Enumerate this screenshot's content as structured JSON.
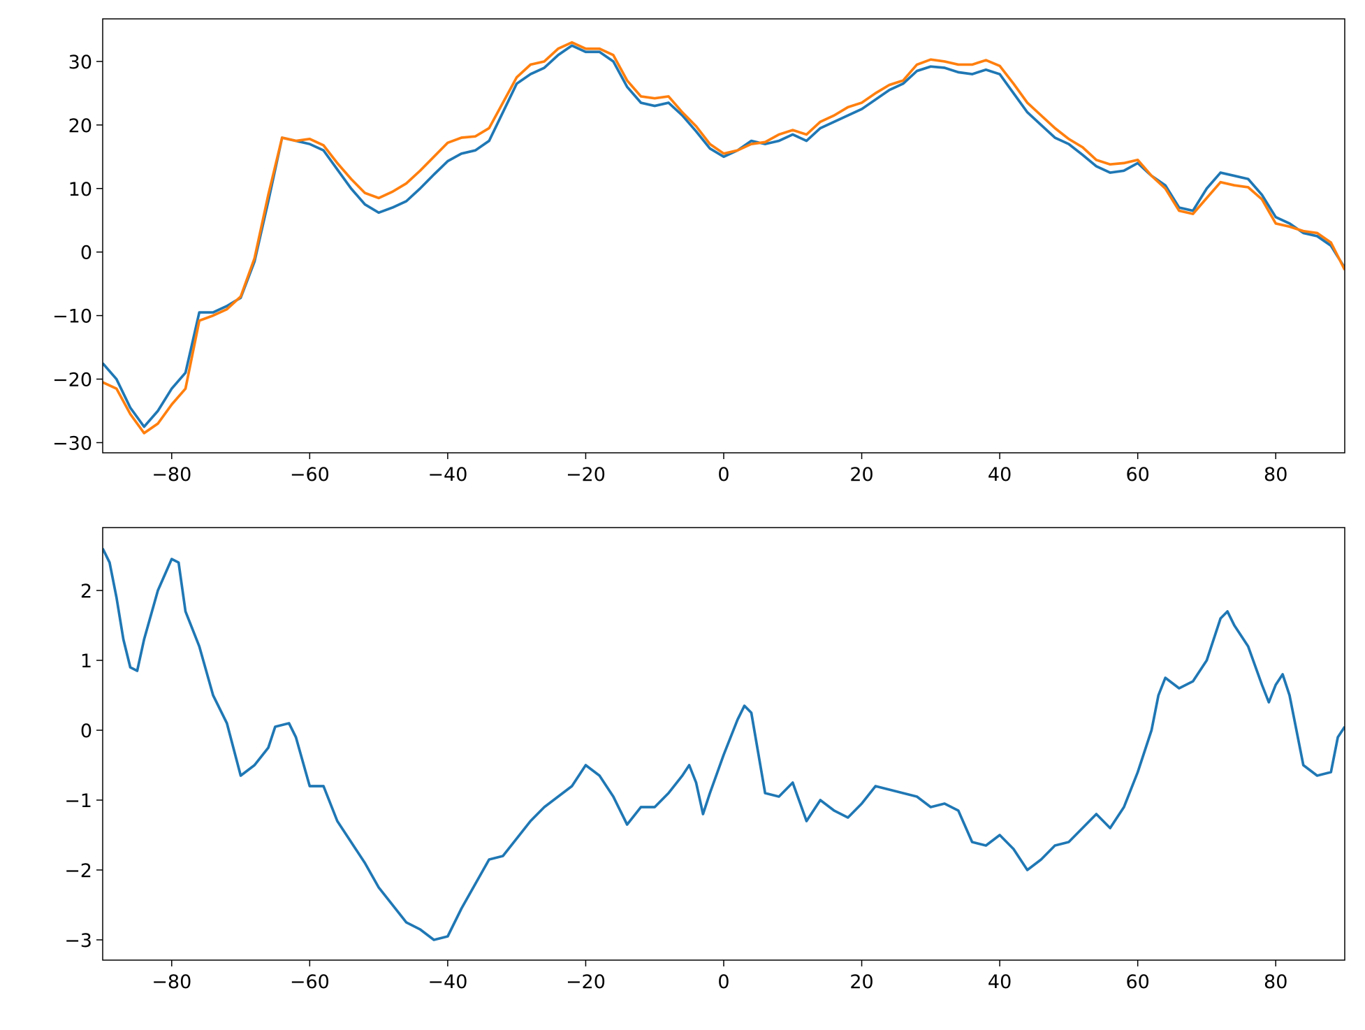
{
  "chart_data": [
    {
      "type": "line",
      "x": [
        -90,
        -88,
        -86,
        -84,
        -82,
        -80,
        -78,
        -76,
        -74,
        -72,
        -70,
        -68,
        -66,
        -64,
        -62,
        -60,
        -58,
        -56,
        -54,
        -52,
        -50,
        -48,
        -46,
        -44,
        -42,
        -40,
        -38,
        -36,
        -34,
        -32,
        -30,
        -28,
        -26,
        -24,
        -22,
        -20,
        -18,
        -16,
        -14,
        -12,
        -10,
        -8,
        -6,
        -4,
        -2,
        0,
        2,
        4,
        6,
        8,
        10,
        12,
        14,
        16,
        18,
        20,
        22,
        24,
        26,
        28,
        30,
        32,
        34,
        36,
        38,
        40,
        42,
        44,
        46,
        48,
        50,
        52,
        54,
        56,
        58,
        60,
        62,
        64,
        66,
        68,
        70,
        72,
        74,
        76,
        78,
        80,
        82,
        84,
        86,
        88,
        90
      ],
      "series": [
        {
          "color": "#1f77b4",
          "values": [
            -17.5,
            -20,
            -24.5,
            -27.5,
            -25,
            -21.5,
            -19,
            -9.5,
            -9.5,
            -8.5,
            -7.2,
            -1.5,
            8,
            18,
            17.5,
            17,
            16,
            13,
            10,
            7.5,
            6.2,
            7,
            8,
            10,
            12.2,
            14.3,
            15.5,
            16,
            17.5,
            22,
            26.5,
            28,
            29,
            31,
            32.5,
            31.5,
            31.5,
            30,
            26,
            23.5,
            23,
            23.5,
            21.5,
            19,
            16.3,
            15,
            16,
            17.5,
            17,
            17.5,
            18.5,
            17.5,
            19.5,
            20.5,
            21.5,
            22.5,
            24,
            25.5,
            26.5,
            28.5,
            29.2,
            29,
            28.3,
            28,
            28.7,
            28,
            25,
            22,
            20,
            18,
            17,
            15.3,
            13.5,
            12.5,
            12.8,
            14,
            12,
            10.5,
            7,
            6.5,
            10,
            12.5,
            12,
            11.5,
            9,
            5.5,
            4.5,
            3,
            2.5,
            1,
            -2.5
          ]
        },
        {
          "color": "#ff7f0e",
          "values": [
            -20.5,
            -21.5,
            -25.5,
            -28.5,
            -27,
            -24,
            -21.5,
            -10.8,
            -10,
            -9,
            -7,
            -1,
            9,
            18,
            17.5,
            17.8,
            16.8,
            14,
            11.5,
            9.3,
            8.5,
            9.5,
            10.8,
            12.8,
            15,
            17.2,
            18,
            18.2,
            19.5,
            23.5,
            27.5,
            29.5,
            30,
            32,
            33,
            32,
            32,
            31,
            27,
            24.5,
            24.2,
            24.5,
            22,
            19.8,
            17,
            15.5,
            16,
            17,
            17.3,
            18.5,
            19.2,
            18.5,
            20.5,
            21.5,
            22.8,
            23.5,
            25,
            26.3,
            27,
            29.5,
            30.3,
            30,
            29.5,
            29.5,
            30.2,
            29.3,
            26.5,
            23.5,
            21.5,
            19.5,
            17.8,
            16.5,
            14.5,
            13.8,
            14,
            14.5,
            12,
            10,
            6.5,
            6,
            8.5,
            11,
            10.5,
            10.2,
            8.3,
            4.5,
            4,
            3.3,
            3,
            1.5,
            -2.8
          ]
        }
      ],
      "xlim": [
        -90,
        90
      ],
      "ylim": [
        -31.6,
        36.7
      ],
      "xticks": [
        {
          "value": -80,
          "label": "−80"
        },
        {
          "value": -60,
          "label": "−60"
        },
        {
          "value": -40,
          "label": "−40"
        },
        {
          "value": -20,
          "label": "−20"
        },
        0,
        20,
        40,
        60,
        80
      ],
      "yticks": [
        {
          "value": -30,
          "label": "−30"
        },
        {
          "value": -20,
          "label": "−20"
        },
        {
          "value": -10,
          "label": "−10"
        },
        0,
        10,
        20,
        30
      ]
    },
    {
      "type": "line",
      "x": [
        -90,
        -89,
        -88,
        -87,
        -86,
        -85,
        -84,
        -82,
        -80,
        -79,
        -78,
        -76,
        -74,
        -72,
        -70,
        -68,
        -66,
        -65,
        -63,
        -62,
        -60,
        -58,
        -56,
        -54,
        -52,
        -50,
        -48,
        -46,
        -44,
        -42,
        -40,
        -38,
        -36,
        -34,
        -32,
        -30,
        -28,
        -26,
        -24,
        -22,
        -20,
        -18,
        -16,
        -14,
        -12,
        -10,
        -8,
        -6,
        -5,
        -4,
        -3,
        -2,
        0,
        2,
        3,
        4,
        6,
        8,
        10,
        12,
        14,
        16,
        18,
        20,
        22,
        24,
        26,
        28,
        30,
        32,
        34,
        36,
        38,
        40,
        42,
        44,
        46,
        48,
        50,
        52,
        54,
        56,
        58,
        60,
        62,
        63,
        64,
        66,
        68,
        70,
        72,
        73,
        74,
        76,
        78,
        79,
        80,
        81,
        82,
        84,
        86,
        88,
        89,
        90
      ],
      "series": [
        {
          "color": "#1f77b4",
          "values": [
            2.6,
            2.4,
            1.9,
            1.3,
            0.9,
            0.85,
            1.3,
            2.0,
            2.45,
            2.4,
            1.7,
            1.2,
            0.5,
            0.1,
            -0.65,
            -0.5,
            -0.25,
            0.05,
            0.1,
            -0.1,
            -0.8,
            -0.8,
            -1.3,
            -1.6,
            -1.9,
            -2.25,
            -2.5,
            -2.75,
            -2.85,
            -3.0,
            -2.95,
            -2.55,
            -2.2,
            -1.85,
            -1.8,
            -1.55,
            -1.3,
            -1.1,
            -0.95,
            -0.8,
            -0.5,
            -0.65,
            -0.95,
            -1.35,
            -1.1,
            -1.1,
            -0.9,
            -0.65,
            -0.5,
            -0.75,
            -1.2,
            -0.9,
            -0.35,
            0.15,
            0.35,
            0.25,
            -0.9,
            -0.95,
            -0.75,
            -1.3,
            -1.0,
            -1.15,
            -1.25,
            -1.05,
            -0.8,
            -0.85,
            -0.9,
            -0.95,
            -1.1,
            -1.05,
            -1.15,
            -1.6,
            -1.65,
            -1.5,
            -1.7,
            -2.0,
            -1.85,
            -1.65,
            -1.6,
            -1.4,
            -1.2,
            -1.4,
            -1.1,
            -0.6,
            0.0,
            0.5,
            0.75,
            0.6,
            0.7,
            1.0,
            1.6,
            1.7,
            1.5,
            1.2,
            0.65,
            0.4,
            0.65,
            0.8,
            0.5,
            -0.5,
            -0.65,
            -0.6,
            -0.1,
            0.05
          ]
        }
      ],
      "xlim": [
        -90,
        90
      ],
      "ylim": [
        -3.29,
        2.9
      ],
      "xticks": [
        {
          "value": -80,
          "label": "−80"
        },
        {
          "value": -60,
          "label": "−60"
        },
        {
          "value": -40,
          "label": "−40"
        },
        {
          "value": -20,
          "label": "−20"
        },
        0,
        20,
        40,
        60,
        80
      ],
      "yticks": [
        {
          "value": -3,
          "label": "−3"
        },
        {
          "value": -2,
          "label": "−2"
        },
        {
          "value": -1,
          "label": "−1"
        },
        0,
        1,
        2
      ]
    }
  ]
}
